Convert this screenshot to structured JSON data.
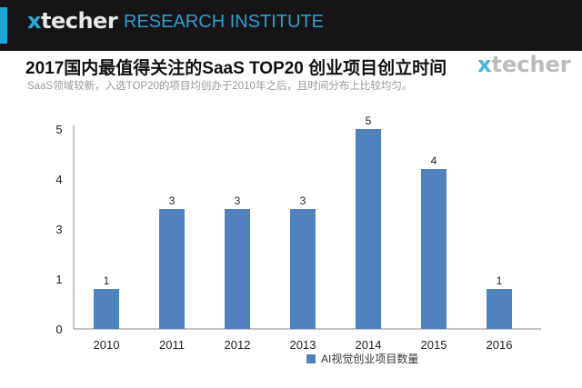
{
  "header": {
    "brand_x": "x",
    "brand_word": "techer",
    "institute": "RESEARCH INSTITUTE"
  },
  "title": "2017国内最值得关注的SaaS TOP20 创业项目创立时间",
  "subtitle": "SaaS领域较新，入选TOP20的项目均创办于2010年之后，且时间分布上比较均匀。",
  "logo": {
    "x": "x",
    "word": "techer"
  },
  "chart_data": {
    "type": "bar",
    "title": "",
    "xlabel": "",
    "ylabel": "",
    "categories": [
      "2010",
      "2011",
      "2012",
      "2013",
      "2014",
      "2015",
      "2016"
    ],
    "series": [
      {
        "name": "AI视觉创业项目数量",
        "values": [
          1,
          3,
          3,
          3,
          5,
          4,
          1
        ],
        "color": "#4f81bd"
      }
    ],
    "data_labels": [
      "1",
      "3",
      "3",
      "3",
      "5",
      "4",
      "1"
    ],
    "y_tick_labels": [
      "5",
      "4",
      "3",
      "1",
      "0"
    ],
    "ylim": [
      0,
      5
    ],
    "grid": false,
    "legend": "bottom"
  }
}
